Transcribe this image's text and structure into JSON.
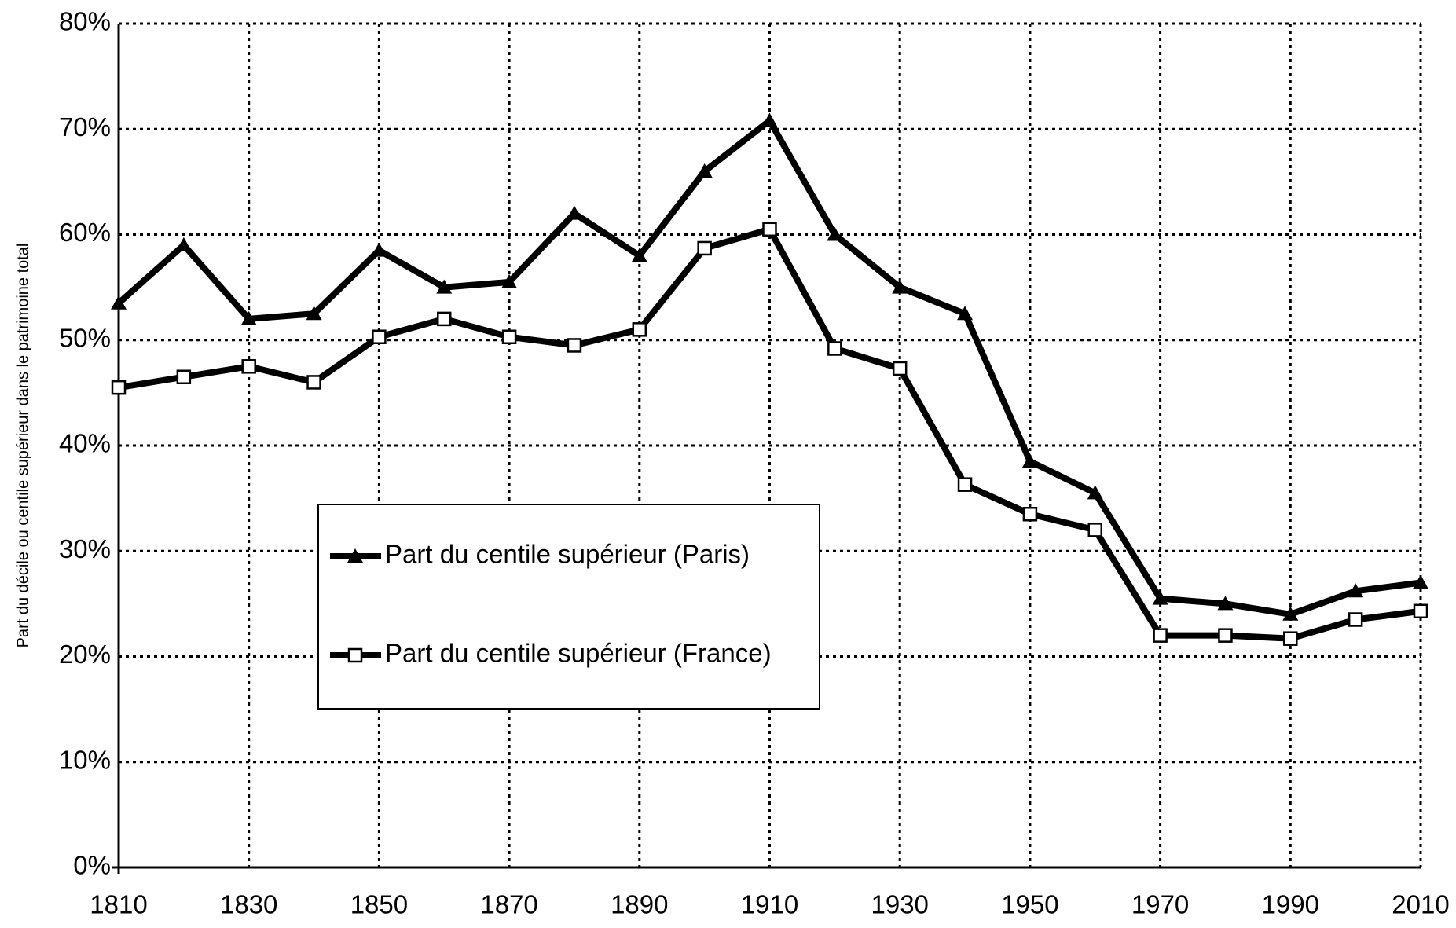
{
  "chart_data": {
    "type": "line",
    "ylabel": "Part du décile ou centile supérieur dans le patrimoine total",
    "x": [
      1810,
      1820,
      1830,
      1840,
      1850,
      1860,
      1870,
      1880,
      1890,
      1900,
      1910,
      1920,
      1930,
      1940,
      1950,
      1960,
      1970,
      1980,
      1990,
      2000,
      2010
    ],
    "series": [
      {
        "name": "Part du centile supérieur (Paris)",
        "color": "#000000",
        "marker": "triangle",
        "values": [
          53.5,
          59,
          52,
          52.5,
          58.5,
          55,
          55.5,
          62,
          58,
          66,
          70.8,
          60,
          55,
          52.5,
          38.5,
          35.5,
          25.5,
          25,
          24,
          26.2,
          27
        ]
      },
      {
        "name": "Part du centile supérieur (France)",
        "color": "#000000",
        "marker": "square",
        "values": [
          45.5,
          46.5,
          47.5,
          46,
          50.3,
          52,
          50.3,
          49.5,
          51,
          58.7,
          60.5,
          49.2,
          47.3,
          36.3,
          33.5,
          32,
          22,
          22,
          21.7,
          23.5,
          24.3
        ]
      }
    ],
    "xlim": [
      1810,
      2010
    ],
    "xticks": [
      1810,
      1830,
      1850,
      1870,
      1890,
      1910,
      1930,
      1950,
      1970,
      1990,
      2010
    ],
    "ylim": [
      0,
      80
    ],
    "yticks": [
      {
        "value": 0,
        "label": "0%"
      },
      {
        "value": 10,
        "label": "10%"
      },
      {
        "value": 20,
        "label": "20%"
      },
      {
        "value": 30,
        "label": "30%"
      },
      {
        "value": 40,
        "label": "40%"
      },
      {
        "value": 50,
        "label": "50%"
      },
      {
        "value": 60,
        "label": "60%"
      },
      {
        "value": 70,
        "label": "70%"
      },
      {
        "value": 80,
        "label": "80%"
      }
    ],
    "grid": true
  }
}
